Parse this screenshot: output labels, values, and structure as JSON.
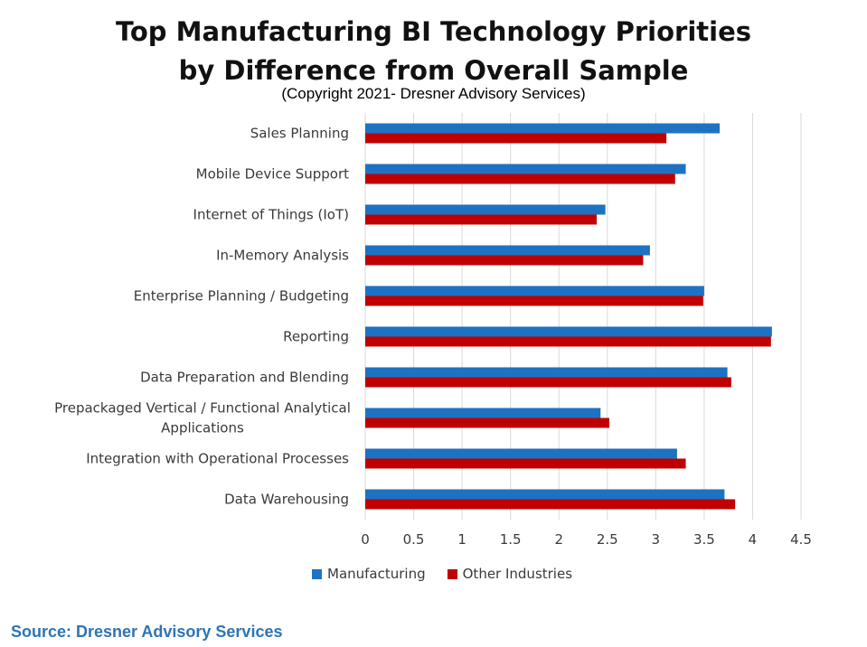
{
  "header": {
    "title_line1": "Top Manufacturing BI Technology Priorities",
    "title_line2": "by Difference from Overall Sample",
    "copyright": "(Copyright 2021- Dresner Advisory Services)"
  },
  "footer": {
    "source": "Source: Dresner Advisory Services",
    "source_color": "#2e74b5"
  },
  "chart_data": {
    "type": "bar",
    "orientation": "horizontal",
    "title": "Top Manufacturing BI Technology Priorities by Difference from Overall Sample",
    "categories": [
      "Sales Planning",
      "Mobile Device Support",
      "Internet of Things (IoT)",
      "In-Memory Analysis",
      "Enterprise Planning / Budgeting",
      "Reporting",
      "Data Preparation and Blending",
      "Prepackaged Vertical / Functional Analytical Applications",
      "Integration with Operational Processes",
      "Data Warehousing"
    ],
    "category_label_lines": [
      [
        "Sales Planning"
      ],
      [
        "Mobile Device Support"
      ],
      [
        "Internet of Things (IoT)"
      ],
      [
        "In-Memory Analysis"
      ],
      [
        "Enterprise Planning / Budgeting"
      ],
      [
        "Reporting"
      ],
      [
        "Data Preparation and Blending"
      ],
      [
        "Prepackaged Vertical / Functional Analytical",
        "Applications"
      ],
      [
        "Integration with Operational Processes"
      ],
      [
        "Data Warehousing"
      ]
    ],
    "series": [
      {
        "name": "Manufacturing",
        "color": "#1e72c2",
        "values": [
          3.66,
          3.31,
          2.48,
          2.94,
          3.5,
          4.2,
          3.74,
          2.43,
          3.22,
          3.71
        ]
      },
      {
        "name": "Other Industries",
        "color": "#c00000",
        "values": [
          3.11,
          3.2,
          2.39,
          2.87,
          3.49,
          4.19,
          3.78,
          2.52,
          3.31,
          3.82
        ]
      }
    ],
    "xlim": [
      0,
      4.5
    ],
    "xticks": [
      "0",
      "0.5",
      "1",
      "1.5",
      "2",
      "2.5",
      "3",
      "3.5",
      "4",
      "4.5"
    ],
    "xlabel": "",
    "ylabel": "",
    "grid": "vertical",
    "legend_position": "bottom"
  }
}
